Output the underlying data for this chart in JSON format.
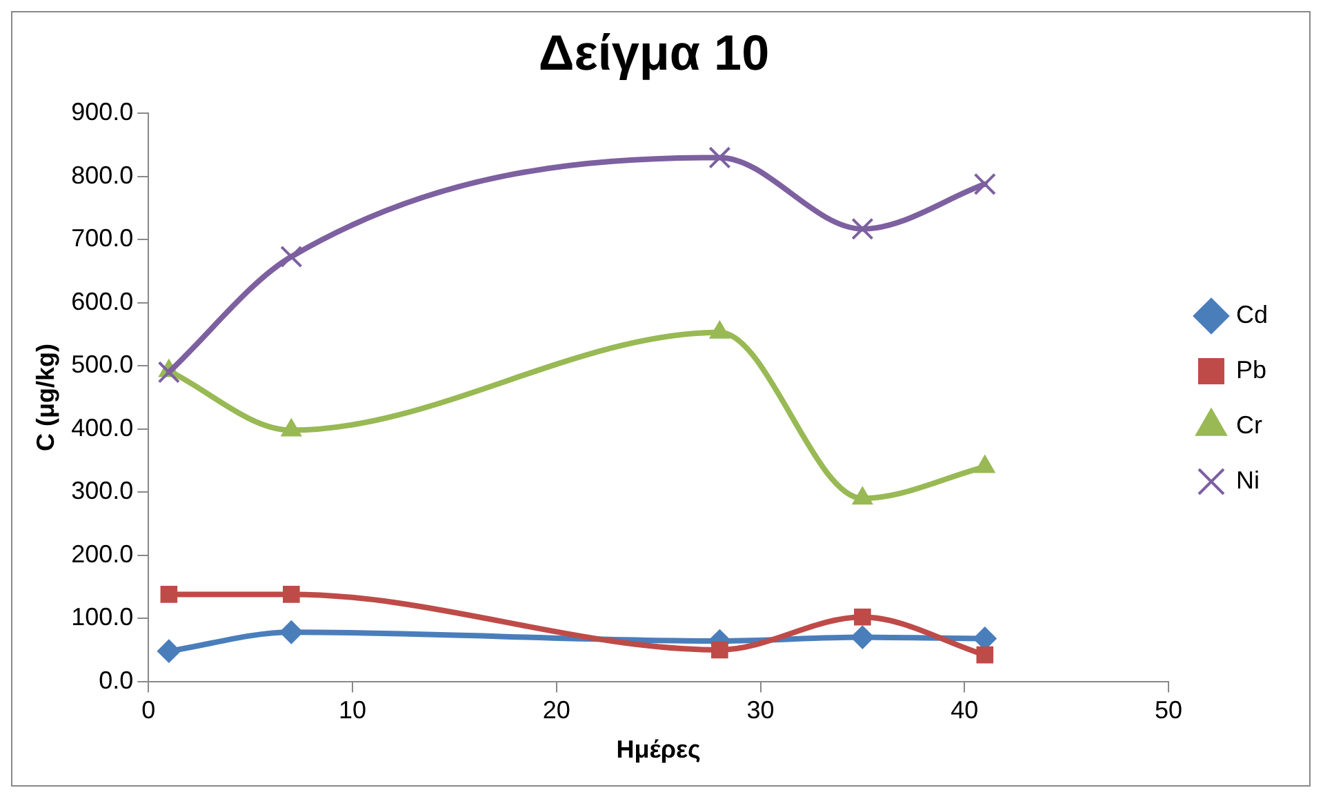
{
  "chart_data": {
    "type": "line",
    "title": "Δείγμα 10",
    "xlabel": "Ημέρες",
    "ylabel": "C (μg/kg)",
    "x": [
      1,
      7,
      28,
      35,
      41
    ],
    "series": [
      {
        "name": "Cd",
        "color": "#4a7ebb",
        "marker": "diamond",
        "values": [
          48,
          78,
          64,
          70,
          68
        ]
      },
      {
        "name": "Pb",
        "color": "#be4b48",
        "marker": "square",
        "values": [
          138,
          138,
          50,
          102,
          42
        ]
      },
      {
        "name": "Cr",
        "color": "#98b954",
        "marker": "triangle",
        "values": [
          492,
          398,
          553,
          290,
          340
        ]
      },
      {
        "name": "Ni",
        "color": "#7d60a0",
        "marker": "cross",
        "values": [
          490,
          673,
          830,
          717,
          788
        ]
      }
    ],
    "xlim": [
      0,
      50
    ],
    "xticks": [
      0,
      10,
      20,
      30,
      40,
      50
    ],
    "ylim": [
      0,
      900
    ],
    "yticks": [
      {
        "value": 0,
        "label": "0.0"
      },
      {
        "value": 100,
        "label": "100.0"
      },
      {
        "value": 200,
        "label": "200.0"
      },
      {
        "value": 300,
        "label": "300.0"
      },
      {
        "value": 400,
        "label": "400.0"
      },
      {
        "value": 500,
        "label": "500.0"
      },
      {
        "value": 600,
        "label": "600.0"
      },
      {
        "value": 700,
        "label": "700.0"
      },
      {
        "value": 800,
        "label": "800.0"
      },
      {
        "value": 900,
        "label": "900.0"
      }
    ],
    "grid": false,
    "legend": "right",
    "line_style": "solid"
  }
}
